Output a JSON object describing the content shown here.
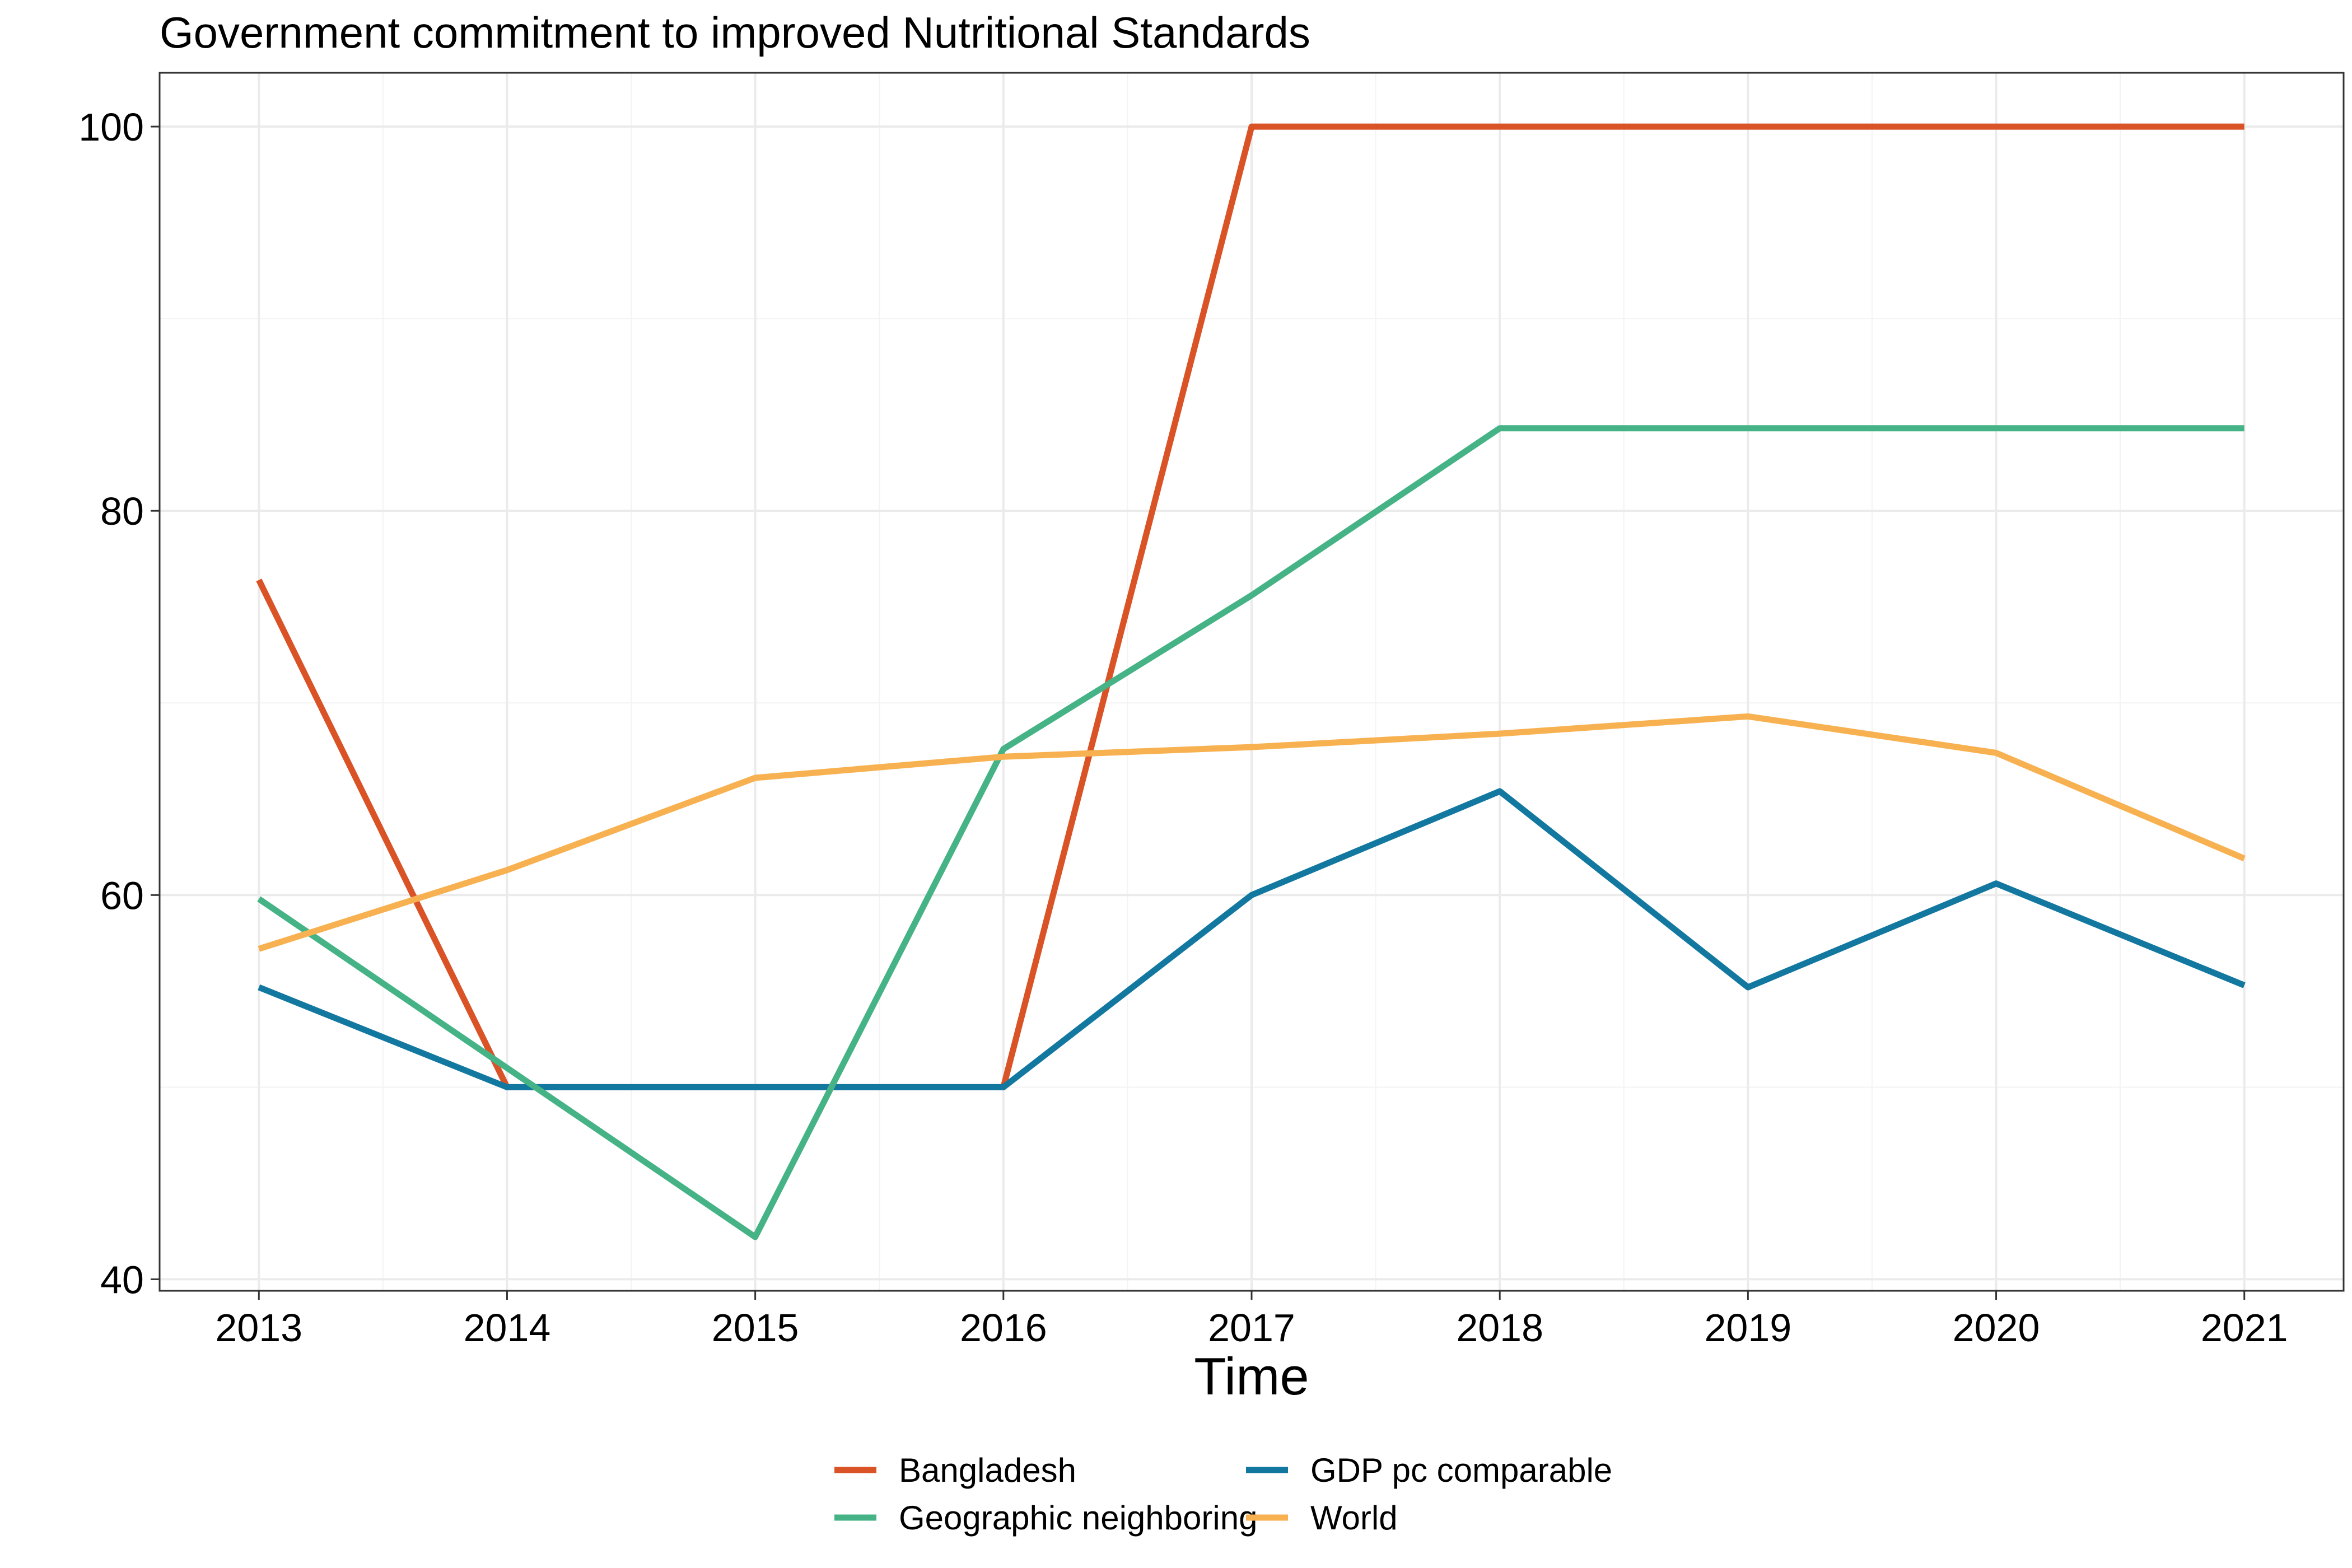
{
  "chart_data": {
    "type": "line",
    "title": "Government commitment to improved Nutritional Standards",
    "xlabel": "Time",
    "ylabel": "",
    "x": [
      2013,
      2014,
      2015,
      2016,
      2017,
      2018,
      2019,
      2020,
      2021
    ],
    "xlim": [
      2012.6,
      2021.4
    ],
    "ylim": [
      39.4,
      102.8
    ],
    "yticks": [
      40,
      60,
      80,
      100
    ],
    "grid": true,
    "legend_position": "bottom",
    "series": [
      {
        "name": "Bangladesh",
        "color": "#D95327",
        "values": [
          76.4,
          50,
          50,
          50,
          100,
          100,
          100,
          100,
          100
        ]
      },
      {
        "name": "GDP pc comparable",
        "color": "#1378A0",
        "values": [
          55.2,
          50,
          50,
          50,
          60,
          65.4,
          55.2,
          60.6,
          55.3
        ]
      },
      {
        "name": "Geographic neighboring",
        "color": "#45B386",
        "values": [
          59.8,
          51,
          42.2,
          67.6,
          75.6,
          84.3,
          84.3,
          84.3,
          84.3
        ]
      },
      {
        "name": "World",
        "color": "#F8B150",
        "values": [
          57.2,
          61.3,
          66.1,
          67.2,
          67.7,
          68.4,
          69.3,
          67.4,
          61.9
        ]
      }
    ]
  }
}
